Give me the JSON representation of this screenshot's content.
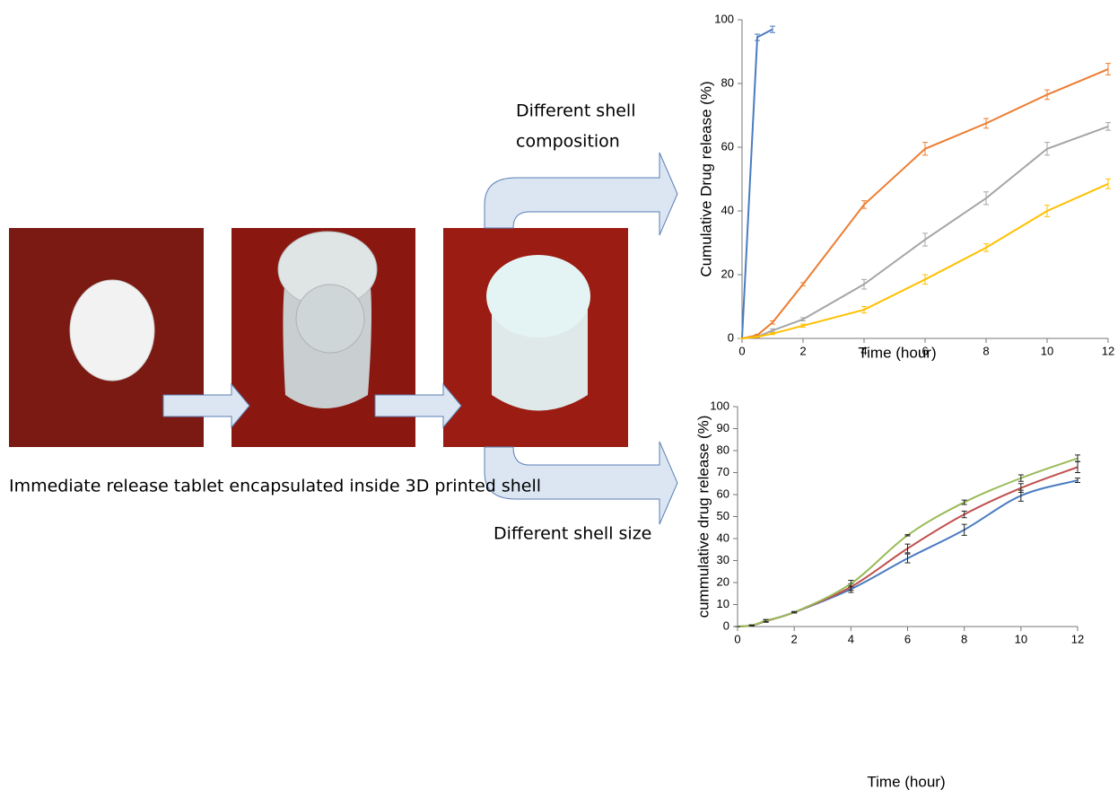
{
  "labels": {
    "caption": "Immediate release tablet encapsulated inside 3D printed shell",
    "upper_arrow": [
      "Different shell",
      "composition"
    ],
    "lower_arrow": "Different shell size"
  },
  "chart_data": [
    {
      "type": "line",
      "x_label": "Time (hour)",
      "y_label": "Cumulative Drug release (%)",
      "xlim": [
        0,
        12
      ],
      "ylim": [
        0,
        100
      ],
      "xticks": [
        0,
        2,
        4,
        6,
        8,
        10,
        12
      ],
      "yticks": [
        0,
        20,
        40,
        60,
        80,
        100
      ],
      "smooth": false,
      "series": [
        {
          "color": "#4a7cc0",
          "x": [
            0,
            0.5,
            1
          ],
          "values": [
            0,
            94.5,
            97
          ],
          "errors": [
            0,
            1,
            1
          ]
        },
        {
          "color": "#ed7d31",
          "x": [
            0,
            0.5,
            1,
            2,
            4,
            6,
            8,
            10,
            12
          ],
          "values": [
            0,
            1,
            5,
            17,
            42,
            59.5,
            67.5,
            76.5,
            84.5
          ],
          "errors": [
            0,
            0.3,
            0.5,
            0.5,
            1.2,
            2,
            1.5,
            1.5,
            1.8
          ]
        },
        {
          "color": "#a5a5a5",
          "x": [
            0,
            0.5,
            1,
            2,
            4,
            6,
            8,
            10,
            12
          ],
          "values": [
            0,
            0.5,
            2.5,
            6,
            17,
            31,
            44,
            59.5,
            66.5
          ],
          "errors": [
            0,
            0.2,
            0.5,
            0.5,
            1.5,
            2,
            2,
            2,
            1.2
          ]
        },
        {
          "color": "#ffc000",
          "x": [
            0,
            0.5,
            1,
            2,
            4,
            6,
            8,
            10,
            12
          ],
          "values": [
            0,
            0.5,
            1.5,
            4,
            9,
            18.5,
            28.5,
            40,
            48.5
          ],
          "errors": [
            0,
            0.2,
            0.3,
            0.5,
            1,
            1.5,
            1.2,
            1.8,
            1.5
          ]
        }
      ]
    },
    {
      "type": "line",
      "x_label": "Time (hour)",
      "y_label": "cummulative drug release (%)",
      "xlim": [
        0,
        12
      ],
      "ylim": [
        0,
        100
      ],
      "xticks": [
        0,
        2,
        4,
        6,
        8,
        10,
        12
      ],
      "yticks": [
        0,
        10,
        20,
        30,
        40,
        50,
        60,
        70,
        80,
        90,
        100
      ],
      "smooth": true,
      "series": [
        {
          "color": "#4a7cc0",
          "x": [
            0,
            0.5,
            1,
            2,
            4,
            6,
            8,
            10,
            12
          ],
          "values": [
            0,
            0.5,
            2.5,
            6.5,
            17,
            31,
            44,
            59.5,
            66.5
          ],
          "errors": [
            0,
            0.2,
            0.5,
            0.3,
            1.5,
            2,
            2.5,
            2.5,
            1
          ]
        },
        {
          "color": "#c0504d",
          "x": [
            0,
            0.5,
            1,
            2,
            4,
            6,
            8,
            10,
            12
          ],
          "values": [
            0,
            0.5,
            2.5,
            6.5,
            18,
            35.5,
            51,
            63,
            72.5
          ],
          "errors": [
            0,
            0.2,
            0.5,
            0.3,
            1.5,
            2,
            1.5,
            2,
            2.5
          ]
        },
        {
          "color": "#9bbb59",
          "x": [
            0,
            0.5,
            1,
            2,
            4,
            6,
            8,
            10,
            12
          ],
          "values": [
            0,
            0.5,
            2.7,
            6.5,
            19.5,
            41.5,
            56.5,
            67.5,
            76.5
          ],
          "errors": [
            0,
            0.2,
            0.5,
            0.3,
            1.5,
            0.3,
            1,
            1.5,
            1.5
          ]
        }
      ]
    }
  ]
}
